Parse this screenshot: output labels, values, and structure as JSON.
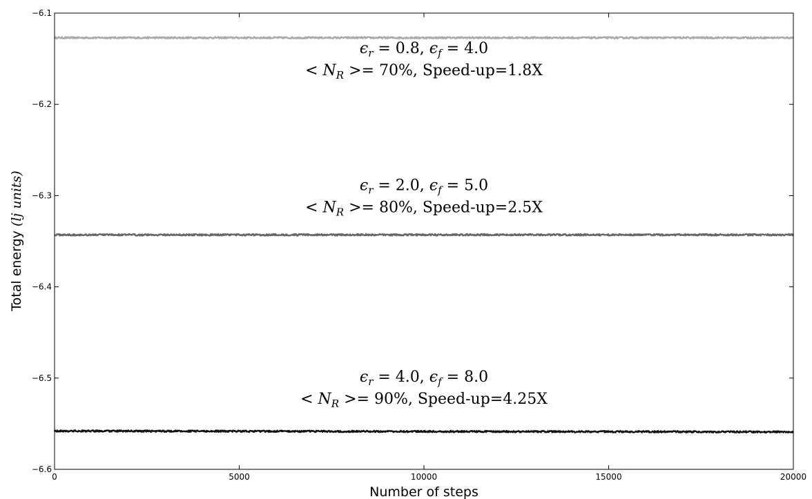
{
  "chart_data": {
    "type": "line",
    "title": "",
    "xlabel": "Number of steps",
    "ylabel": {
      "main": "Total energy",
      "unit": "(lj units)"
    },
    "xlim": [
      0,
      20000
    ],
    "ylim": [
      -6.6,
      -6.1
    ],
    "xticks": [
      0,
      5000,
      10000,
      15000,
      20000
    ],
    "yticks": [
      -6.6,
      -6.5,
      -6.4,
      -6.3,
      -6.2,
      -6.1
    ],
    "xtick_labels": [
      "0",
      "5000",
      "10000",
      "15000",
      "20000"
    ],
    "ytick_labels": [
      "−6.6",
      "−6.5",
      "−6.4",
      "−6.3",
      "−6.2",
      "−6.1"
    ],
    "grid": false,
    "legend": "none",
    "series": [
      {
        "color": "#aaaaaa",
        "x": [
          0,
          20000
        ],
        "y": [
          -6.127,
          -6.127
        ],
        "noise": 0.0009,
        "annotation": {
          "x": 10000,
          "y": -6.15,
          "line1": {
            "eps_r": "0.8",
            "eps_f": "4.0"
          },
          "line2": {
            "percent": "70%",
            "speedup": "1.8X"
          }
        }
      },
      {
        "color": "#666666",
        "x": [
          0,
          20000
        ],
        "y": [
          -6.343,
          -6.343
        ],
        "noise": 0.0009,
        "annotation": {
          "x": 10000,
          "y": -6.3,
          "line1": {
            "eps_r": "2.0",
            "eps_f": "5.0"
          },
          "line2": {
            "percent": "80%",
            "speedup": "2.5X"
          }
        }
      },
      {
        "color": "#111111",
        "x": [
          0,
          20000
        ],
        "y": [
          -6.558,
          -6.559
        ],
        "noise": 0.0009,
        "annotation": {
          "x": 10000,
          "y": -6.51,
          "line1": {
            "eps_r": "4.0",
            "eps_f": "8.0"
          },
          "line2": {
            "percent": "90%",
            "speedup": "4.25X"
          }
        }
      }
    ]
  },
  "text": {
    "speedup_prefix": "Speed-up="
  }
}
